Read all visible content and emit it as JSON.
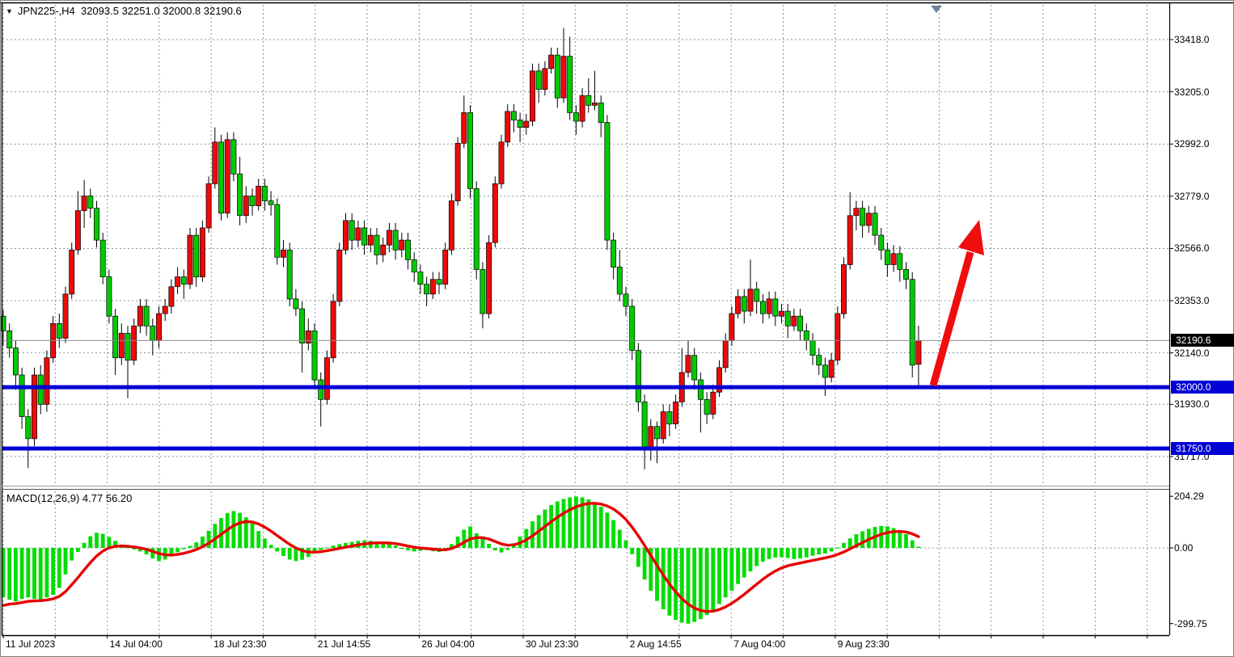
{
  "window": {
    "symbol_period": "JPN225-,H4",
    "ohlc_text": "32093.5 32251.0 32000.8 32190.6",
    "dropdown_icon": "triangle-down"
  },
  "colors": {
    "bull": "#ee0a0a",
    "bear": "#00cb00",
    "wick": "#000000",
    "macd_hist": "#00dd00",
    "macd_signal": "#e80000",
    "grid": "#8496a8",
    "support_line": "#0000d6",
    "current_price_line": "#8c8c8c",
    "current_price_label_bg": "#000000",
    "support_label_bg": "#0000d6",
    "arrow": "#f00d0d",
    "time_marker": "#6f8399",
    "frame": "#000000",
    "outer_border": "#828282"
  },
  "price_axis": {
    "labels": [
      "33418.0",
      "33205.0",
      "32992.0",
      "32779.0",
      "32566.0",
      "32353.0",
      "32140.0",
      "31930.0",
      "31717.0"
    ],
    "values": [
      33418,
      33205,
      32992,
      32779,
      32566,
      32353,
      32140,
      31930,
      31717
    ],
    "current_price_label": "32190.6",
    "support_labels": [
      "32000.0",
      "31750.0"
    ]
  },
  "macd_panel": {
    "label": "MACD(12,26,9) 4.77 56.20",
    "axis_labels": [
      "204.29",
      "0.00",
      "-299.75"
    ],
    "axis_values": [
      204.29,
      0,
      -299.75
    ]
  },
  "chart_data": {
    "type": "candlestick",
    "title": "JPN225-,H4",
    "symbol": "JPN225-",
    "timeframe": "H4",
    "convention": "red candles = bullish (up), green candles = bearish (down)",
    "last_candle": {
      "open": 32093.5,
      "high": 32251.0,
      "low": 32000.8,
      "close": 32190.6
    },
    "current_price": 32190.6,
    "support_levels": [
      32000.0,
      31750.0
    ],
    "price_gridlines": [
      33418,
      33205,
      32992,
      32779,
      32566,
      32353,
      32140,
      31930,
      31717
    ],
    "time_labels": [
      "11 Jul 2023",
      "14 Jul 04:00",
      "18 Jul 23:30",
      "21 Jul 14:55",
      "26 Jul 04:00",
      "30 Jul 23:30",
      "2 Aug 14:55",
      "7 Aug 04:00",
      "9 Aug 23:30"
    ],
    "annotation": "thick red up-arrow from the 32000.0 support at the last candle pointing up toward ~32700",
    "ohlc": [
      [
        32290,
        32315,
        32170,
        32230
      ],
      [
        32230,
        32260,
        32120,
        32160
      ],
      [
        32160,
        32190,
        31990,
        32050
      ],
      [
        32050,
        32080,
        31830,
        31880
      ],
      [
        31880,
        31910,
        31670,
        31790
      ],
      [
        31790,
        32080,
        31760,
        32050
      ],
      [
        32050,
        32090,
        31890,
        31930
      ],
      [
        31930,
        32150,
        31900,
        32120
      ],
      [
        32120,
        32290,
        32100,
        32260
      ],
      [
        32260,
        32300,
        32160,
        32200
      ],
      [
        32200,
        32410,
        32180,
        32380
      ],
      [
        32380,
        32590,
        32360,
        32560
      ],
      [
        32560,
        32800,
        32540,
        32720
      ],
      [
        32720,
        32845,
        32650,
        32780
      ],
      [
        32780,
        32810,
        32690,
        32730
      ],
      [
        32730,
        32760,
        32570,
        32600
      ],
      [
        32600,
        32630,
        32420,
        32450
      ],
      [
        32450,
        32480,
        32260,
        32290
      ],
      [
        32290,
        32320,
        32050,
        32120
      ],
      [
        32120,
        32260,
        32090,
        32220
      ],
      [
        32220,
        32250,
        31955,
        32110
      ],
      [
        32110,
        32280,
        32090,
        32250
      ],
      [
        32250,
        32360,
        32220,
        32330
      ],
      [
        32330,
        32360,
        32210,
        32250
      ],
      [
        32250,
        32280,
        32130,
        32190
      ],
      [
        32190,
        32330,
        32160,
        32300
      ],
      [
        32300,
        32360,
        32270,
        32330
      ],
      [
        32330,
        32440,
        32300,
        32410
      ],
      [
        32410,
        32490,
        32380,
        32450
      ],
      [
        32450,
        32480,
        32360,
        32420
      ],
      [
        32420,
        32650,
        32400,
        32620
      ],
      [
        32620,
        32650,
        32410,
        32450
      ],
      [
        32450,
        32680,
        32430,
        32650
      ],
      [
        32650,
        32860,
        32630,
        32830
      ],
      [
        32830,
        33060,
        32810,
        33000
      ],
      [
        33000,
        33030,
        32680,
        32710
      ],
      [
        32710,
        33040,
        32690,
        33010
      ],
      [
        33010,
        33040,
        32840,
        32870
      ],
      [
        32870,
        32940,
        32660,
        32700
      ],
      [
        32700,
        32820,
        32670,
        32780
      ],
      [
        32780,
        32810,
        32700,
        32740
      ],
      [
        32740,
        32850,
        32720,
        32820
      ],
      [
        32820,
        32850,
        32720,
        32760
      ],
      [
        32760,
        32800,
        32700,
        32745
      ],
      [
        32745,
        32770,
        32500,
        32530
      ],
      [
        32530,
        32600,
        32490,
        32560
      ],
      [
        32560,
        32590,
        32330,
        32360
      ],
      [
        32360,
        32400,
        32290,
        32320
      ],
      [
        32320,
        32350,
        32060,
        32180
      ],
      [
        32180,
        32280,
        32150,
        32230
      ],
      [
        32230,
        32260,
        32000,
        32030
      ],
      [
        32030,
        32060,
        31840,
        31950
      ],
      [
        31950,
        32150,
        31930,
        32120
      ],
      [
        32120,
        32380,
        32100,
        32350
      ],
      [
        32350,
        32590,
        32330,
        32560
      ],
      [
        32560,
        32710,
        32540,
        32680
      ],
      [
        32680,
        32710,
        32560,
        32600
      ],
      [
        32600,
        32680,
        32570,
        32650
      ],
      [
        32650,
        32680,
        32540,
        32580
      ],
      [
        32580,
        32650,
        32550,
        32620
      ],
      [
        32620,
        32650,
        32500,
        32540
      ],
      [
        32540,
        32610,
        32510,
        32580
      ],
      [
        32580,
        32670,
        32550,
        32640
      ],
      [
        32640,
        32670,
        32520,
        32560
      ],
      [
        32560,
        32630,
        32530,
        32600
      ],
      [
        32600,
        32630,
        32480,
        32520
      ],
      [
        32520,
        32550,
        32430,
        32470
      ],
      [
        32470,
        32500,
        32380,
        32420
      ],
      [
        32420,
        32450,
        32330,
        32380
      ],
      [
        32380,
        32470,
        32360,
        32440
      ],
      [
        32440,
        32470,
        32380,
        32420
      ],
      [
        32420,
        32590,
        32400,
        32560
      ],
      [
        32560,
        32790,
        32540,
        32760
      ],
      [
        32760,
        33020,
        32740,
        32995
      ],
      [
        32995,
        33190,
        32975,
        33120
      ],
      [
        33120,
        33150,
        32770,
        32810
      ],
      [
        32810,
        32840,
        32440,
        32480
      ],
      [
        32480,
        32510,
        32240,
        32300
      ],
      [
        32300,
        32620,
        32280,
        32590
      ],
      [
        32590,
        32860,
        32570,
        32830
      ],
      [
        32830,
        33030,
        32810,
        33000
      ],
      [
        33000,
        33155,
        32980,
        33125
      ],
      [
        33125,
        33155,
        33040,
        33090
      ],
      [
        33090,
        33120,
        33000,
        33060
      ],
      [
        33060,
        33115,
        33030,
        33085
      ],
      [
        33085,
        33320,
        33065,
        33290
      ],
      [
        33290,
        33320,
        33160,
        33215
      ],
      [
        33215,
        33330,
        33190,
        33300
      ],
      [
        33300,
        33385,
        33280,
        33355
      ],
      [
        33355,
        33385,
        33140,
        33180
      ],
      [
        33180,
        33465,
        33160,
        33350
      ],
      [
        33350,
        33430,
        33090,
        33120
      ],
      [
        33120,
        33150,
        33030,
        33085
      ],
      [
        33085,
        33220,
        33060,
        33190
      ],
      [
        33190,
        33260,
        33120,
        33150
      ],
      [
        33150,
        33290,
        33130,
        33160
      ],
      [
        33160,
        33190,
        33020,
        33080
      ],
      [
        33080,
        33110,
        32560,
        32600
      ],
      [
        32600,
        32630,
        32440,
        32490
      ],
      [
        32490,
        32560,
        32350,
        32380
      ],
      [
        32380,
        32410,
        32290,
        32330
      ],
      [
        32330,
        32360,
        32110,
        32150
      ],
      [
        32150,
        32180,
        31900,
        31940
      ],
      [
        31940,
        31970,
        31665,
        31755
      ],
      [
        31755,
        31870,
        31700,
        31840
      ],
      [
        31840,
        31860,
        31690,
        31790
      ],
      [
        31790,
        31930,
        31770,
        31900
      ],
      [
        31900,
        31930,
        31800,
        31850
      ],
      [
        31850,
        31970,
        31830,
        31940
      ],
      [
        31940,
        32160,
        31920,
        32060
      ],
      [
        32060,
        32190,
        32040,
        32130
      ],
      [
        32130,
        32160,
        31990,
        32030
      ],
      [
        32030,
        32060,
        31815,
        31950
      ],
      [
        31950,
        31980,
        31850,
        31890
      ],
      [
        31890,
        32010,
        31870,
        31980
      ],
      [
        31980,
        32110,
        31960,
        32080
      ],
      [
        32080,
        32220,
        32060,
        32190
      ],
      [
        32190,
        32330,
        32170,
        32300
      ],
      [
        32300,
        32400,
        32280,
        32370
      ],
      [
        32370,
        32400,
        32260,
        32310
      ],
      [
        32310,
        32520,
        32290,
        32400
      ],
      [
        32400,
        32430,
        32300,
        32350
      ],
      [
        32350,
        32380,
        32260,
        32300
      ],
      [
        32300,
        32390,
        32280,
        32360
      ],
      [
        32360,
        32390,
        32250,
        32290
      ],
      [
        32290,
        32340,
        32260,
        32310
      ],
      [
        32310,
        32340,
        32200,
        32250
      ],
      [
        32250,
        32320,
        32230,
        32290
      ],
      [
        32290,
        32320,
        32190,
        32230
      ],
      [
        32230,
        32260,
        32150,
        32190
      ],
      [
        32190,
        32220,
        32090,
        32130
      ],
      [
        32130,
        32160,
        32050,
        32090
      ],
      [
        32090,
        32120,
        31965,
        32040
      ],
      [
        32040,
        32140,
        32020,
        32110
      ],
      [
        32110,
        32330,
        32090,
        32300
      ],
      [
        32300,
        32530,
        32280,
        32500
      ],
      [
        32500,
        32795,
        32480,
        32700
      ],
      [
        32700,
        32760,
        32640,
        32730
      ],
      [
        32730,
        32760,
        32610,
        32660
      ],
      [
        32660,
        32740,
        32630,
        32710
      ],
      [
        32710,
        32740,
        32580,
        32620
      ],
      [
        32620,
        32650,
        32520,
        32560
      ],
      [
        32560,
        32590,
        32450,
        32500
      ],
      [
        32500,
        32580,
        32470,
        32545
      ],
      [
        32545,
        32575,
        32430,
        32480
      ],
      [
        32480,
        32510,
        32400,
        32440
      ],
      [
        32440,
        32470,
        32040,
        32090
      ],
      [
        32093.5,
        32251.0,
        32000.8,
        32190.6
      ]
    ],
    "macd": {
      "params": "12,26,9",
      "macd_value": 4.77,
      "signal_value": 56.2,
      "ylim": [
        -299.75,
        204.29
      ],
      "signal_note": "red signal line = smoothed average of histogram values",
      "histogram": [
        -195,
        -205,
        -212,
        -202,
        -196,
        -202,
        -207,
        -196,
        -186,
        -158,
        -105,
        -50,
        -16,
        20,
        46,
        60,
        56,
        44,
        28,
        13,
        3,
        -6,
        -14,
        -26,
        -42,
        -52,
        -46,
        -32,
        -17,
        -5,
        8,
        22,
        45,
        68,
        95,
        118,
        138,
        146,
        139,
        121,
        97,
        67,
        37,
        12,
        -14,
        -32,
        -46,
        -52,
        -47,
        -36,
        -20,
        -8,
        2,
        9,
        15,
        20,
        24,
        28,
        30,
        28,
        25,
        21,
        16,
        9,
        -4,
        -10,
        -14,
        -12,
        -9,
        -13,
        -16,
        -8,
        15,
        45,
        72,
        85,
        58,
        40,
        16,
        -10,
        -18,
        -8,
        18,
        45,
        75,
        105,
        130,
        152,
        170,
        184,
        194,
        200,
        204,
        200,
        192,
        180,
        163,
        140,
        110,
        72,
        30,
        -25,
        -75,
        -125,
        -170,
        -210,
        -243,
        -268,
        -285,
        -296,
        -300,
        -293,
        -282,
        -266,
        -246,
        -222,
        -196,
        -170,
        -143,
        -117,
        -93,
        -72,
        -55,
        -44,
        -38,
        -37,
        -40,
        -44,
        -42,
        -37,
        -31,
        -26,
        -22,
        -14,
        2,
        20,
        38,
        54,
        66,
        76,
        83,
        87,
        85,
        78,
        68,
        55,
        30,
        4.77
      ]
    }
  }
}
